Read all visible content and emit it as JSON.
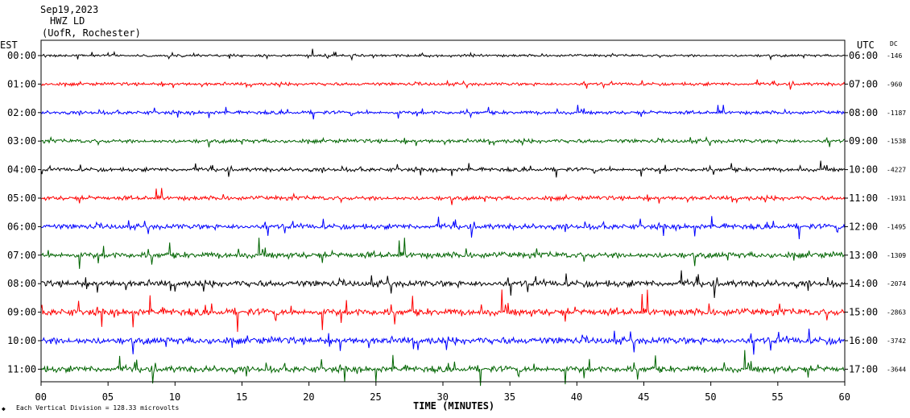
{
  "header": {
    "date": "Sep19,2023",
    "station": "HWZ LD",
    "location": "(UofR, Rochester)"
  },
  "labels": {
    "left_tz": "EST",
    "right_tz": "UTC",
    "dc": "DC",
    "xlabel": "TIME (MINUTES)",
    "footer": "Each Vertical Division = 128.33 microvolts"
  },
  "colors": {
    "trace_cycle": [
      "#000000",
      "#ff0000",
      "#0000ff",
      "#006400"
    ],
    "frame": "#000000",
    "background": "#ffffff"
  },
  "chart_data": {
    "type": "line",
    "title": "Sep19,2023",
    "xlabel": "TIME (MINUTES)",
    "xlim": [
      0,
      60
    ],
    "x_ticks": [
      "00",
      "05",
      "10",
      "15",
      "20",
      "25",
      "30",
      "35",
      "40",
      "45",
      "50",
      "55",
      "60"
    ],
    "rows": [
      {
        "est": "00:00",
        "utc": "06:00",
        "dc": "-146",
        "color": "#000000",
        "amplitude": 0.35
      },
      {
        "est": "01:00",
        "utc": "07:00",
        "dc": "-960",
        "color": "#ff0000",
        "amplitude": 0.45
      },
      {
        "est": "02:00",
        "utc": "08:00",
        "dc": "-1187",
        "color": "#0000ff",
        "amplitude": 0.5
      },
      {
        "est": "03:00",
        "utc": "09:00",
        "dc": "-1538",
        "color": "#006400",
        "amplitude": 0.55
      },
      {
        "est": "04:00",
        "utc": "10:00",
        "dc": "-4227",
        "color": "#000000",
        "amplitude": 0.55
      },
      {
        "est": "05:00",
        "utc": "11:00",
        "dc": "-1931",
        "color": "#ff0000",
        "amplitude": 0.6
      },
      {
        "est": "06:00",
        "utc": "12:00",
        "dc": "-1495",
        "color": "#0000ff",
        "amplitude": 0.75
      },
      {
        "est": "07:00",
        "utc": "13:00",
        "dc": "-1309",
        "color": "#006400",
        "amplitude": 0.85
      },
      {
        "est": "08:00",
        "utc": "14:00",
        "dc": "-2074",
        "color": "#000000",
        "amplitude": 0.9
      },
      {
        "est": "09:00",
        "utc": "15:00",
        "dc": "-2863",
        "color": "#ff0000",
        "amplitude": 1.0
      },
      {
        "est": "10:00",
        "utc": "16:00",
        "dc": "-3742",
        "color": "#0000ff",
        "amplitude": 1.0
      },
      {
        "est": "11:00",
        "utc": "17:00",
        "dc": "-3644",
        "color": "#006400",
        "amplitude": 0.9
      }
    ]
  }
}
